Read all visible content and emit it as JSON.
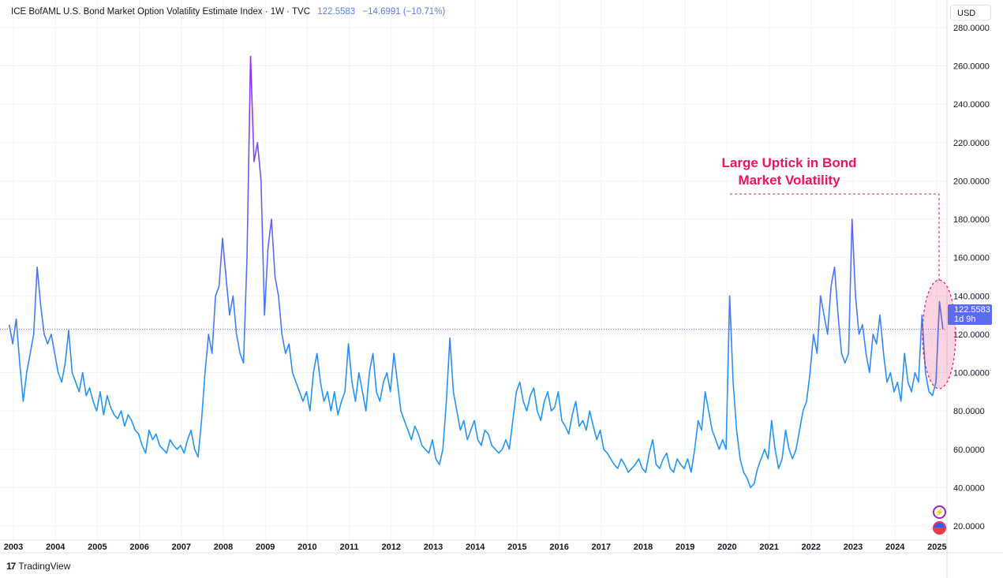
{
  "legend": {
    "title": "ICE BofAML U.S. Bond Market Option Volatility Estimate Index · 1W · TVC",
    "last": "122.5583",
    "change": "−14.6991 (−10.71%)"
  },
  "currency_button": "USD",
  "price_tag": {
    "value": "122.5583",
    "countdown": "1d 9h"
  },
  "annotation": {
    "line1": "Large Uptick in Bond",
    "line2": "Market Volatility"
  },
  "branding": {
    "logo_mark": "17",
    "name": "TradingView"
  },
  "icons": [
    "lightning-icon",
    "us-flag-icon"
  ],
  "colors": {
    "line_low": "#2196f3",
    "line_high": "#9c27ff",
    "annotation": "#f2115b",
    "tag": "#5b6cf0"
  },
  "chart_data": {
    "type": "line",
    "title": "ICE BofAML U.S. Bond Market Option Volatility Estimate Index (MOVE)",
    "xlabel": "",
    "ylabel": "",
    "ylim": [
      20,
      280
    ],
    "grid": true,
    "y_ticks": [
      "20.0000",
      "40.0000",
      "60.0000",
      "80.0000",
      "100.0000",
      "120.0000",
      "140.0000",
      "160.0000",
      "180.0000",
      "200.0000",
      "220.0000",
      "240.0000",
      "260.0000",
      "280.0000"
    ],
    "x_ticks": [
      "2003",
      "2004",
      "2005",
      "2006",
      "2007",
      "2008",
      "2009",
      "2010",
      "2011",
      "2012",
      "2013",
      "2014",
      "2015",
      "2016",
      "2017",
      "2018",
      "2019",
      "2020",
      "2021",
      "2022",
      "2023",
      "2024",
      "2025"
    ],
    "x_start_year": 2002.9,
    "step_years": 0.0833,
    "values": [
      125,
      115,
      128,
      105,
      85,
      100,
      110,
      120,
      155,
      135,
      120,
      115,
      120,
      110,
      100,
      95,
      105,
      122,
      100,
      95,
      90,
      100,
      88,
      92,
      85,
      80,
      90,
      78,
      88,
      82,
      78,
      76,
      80,
      72,
      78,
      75,
      70,
      68,
      62,
      58,
      70,
      65,
      68,
      62,
      60,
      58,
      65,
      62,
      60,
      62,
      58,
      65,
      70,
      60,
      56,
      75,
      100,
      120,
      110,
      140,
      145,
      170,
      150,
      130,
      140,
      120,
      110,
      105,
      160,
      265,
      210,
      220,
      200,
      130,
      165,
      180,
      150,
      140,
      120,
      110,
      115,
      100,
      95,
      90,
      85,
      90,
      80,
      100,
      110,
      95,
      85,
      90,
      80,
      90,
      78,
      85,
      90,
      115,
      95,
      85,
      100,
      90,
      80,
      100,
      110,
      90,
      85,
      95,
      100,
      90,
      110,
      95,
      80,
      75,
      70,
      65,
      72,
      68,
      62,
      60,
      58,
      65,
      55,
      52,
      60,
      85,
      118,
      90,
      80,
      70,
      75,
      65,
      70,
      75,
      65,
      62,
      70,
      68,
      62,
      60,
      58,
      60,
      65,
      60,
      75,
      90,
      95,
      85,
      80,
      88,
      92,
      80,
      75,
      85,
      90,
      80,
      82,
      90,
      75,
      72,
      68,
      78,
      85,
      72,
      75,
      70,
      80,
      72,
      65,
      70,
      60,
      58,
      55,
      52,
      50,
      55,
      52,
      48,
      50,
      52,
      55,
      50,
      48,
      58,
      65,
      52,
      50,
      55,
      58,
      50,
      48,
      55,
      52,
      50,
      55,
      48,
      60,
      75,
      70,
      90,
      80,
      70,
      65,
      60,
      65,
      60,
      140,
      95,
      70,
      55,
      48,
      45,
      40,
      42,
      50,
      55,
      60,
      55,
      75,
      60,
      50,
      55,
      70,
      60,
      55,
      60,
      70,
      80,
      85,
      100,
      120,
      110,
      140,
      130,
      120,
      145,
      155,
      130,
      110,
      105,
      110,
      180,
      140,
      120,
      125,
      110,
      100,
      120,
      115,
      130,
      110,
      95,
      100,
      90,
      95,
      85,
      110,
      95,
      90,
      100,
      95,
      130,
      100,
      90,
      88,
      95,
      137,
      122.5583
    ],
    "last_value": 122.5583
  }
}
